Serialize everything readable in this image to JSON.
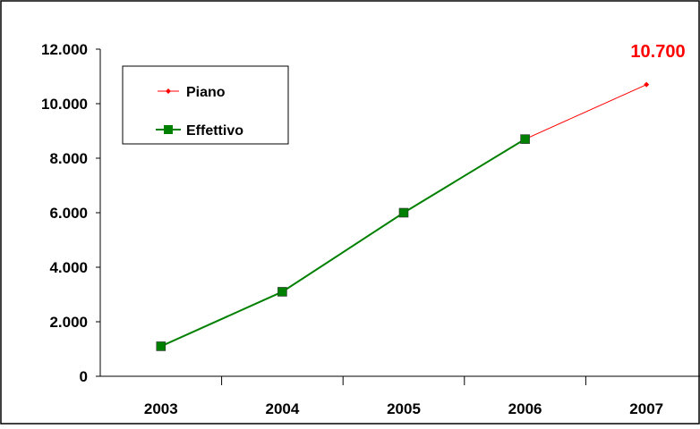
{
  "chart_data": {
    "type": "line",
    "categories": [
      "2003",
      "2004",
      "2005",
      "2006",
      "2007"
    ],
    "y_ticks": [
      "0",
      "2.000",
      "4.000",
      "6.000",
      "8.000",
      "10.000",
      "12.000"
    ],
    "ylim": [
      0,
      12000
    ],
    "series": [
      {
        "name": "Piano",
        "values": [
          1100,
          3100,
          6000,
          8700,
          10700
        ],
        "color": "#ff0000",
        "marker": "diamond"
      },
      {
        "name": "Effettivo",
        "values": [
          1100,
          3100,
          6000,
          8700,
          null
        ],
        "color": "#008000",
        "marker": "square"
      }
    ],
    "annotation": {
      "text": "10.700",
      "color": "#ff0000"
    },
    "legend_placement": "top-left inside plot",
    "grid": false
  }
}
